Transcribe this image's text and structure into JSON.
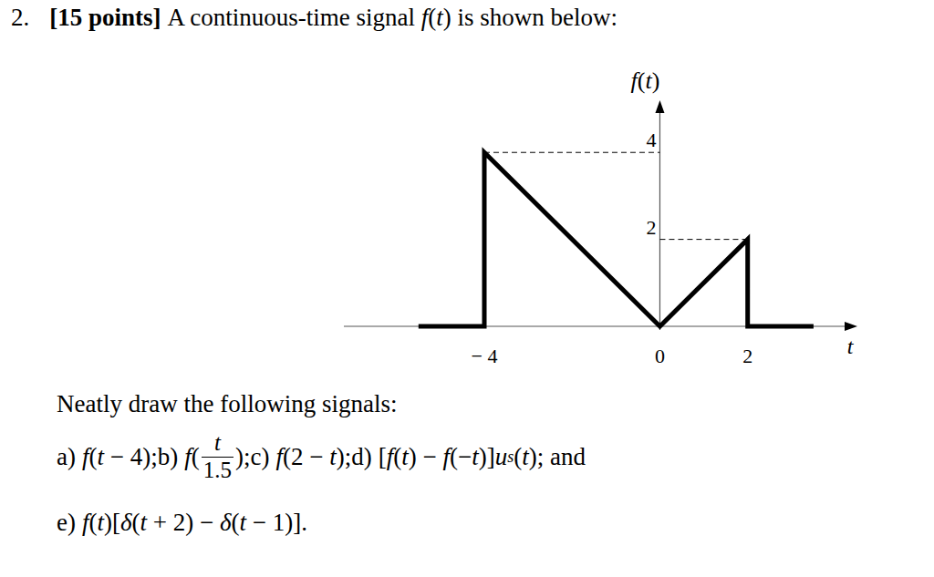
{
  "header": {
    "number": "2.",
    "points": "[15 points]",
    "statement": [
      {
        "text": "A continuous-time signal "
      },
      {
        "text": "f(t)",
        "math": true
      },
      {
        "text": " is shown below:"
      }
    ]
  },
  "chart_data": {
    "type": "line",
    "y_label": "f(t)",
    "x_label": "t",
    "color": "#000000",
    "x": [
      -5.5,
      -4,
      -4,
      0,
      2,
      2,
      3.5
    ],
    "values": [
      0,
      0,
      4,
      0,
      2,
      0,
      0
    ],
    "xlim": [
      -7.2,
      4.5
    ],
    "ylim": [
      0,
      5.2
    ],
    "xticks": [
      {
        "value": -4,
        "label": "− 4"
      },
      0,
      2
    ],
    "yticks": [
      2,
      4
    ],
    "guides": [
      {
        "x": [
          -4,
          0
        ],
        "y": 4,
        "line_style": "dashed"
      },
      {
        "x": [
          0,
          2
        ],
        "y": 2,
        "line_style": "dashed"
      }
    ],
    "grid": false
  },
  "questions": {
    "intro": "Neatly draw the following signals:",
    "lines": [
      [
        {
          "label": "a)",
          "expression": [
            "f(t − 4)"
          ],
          "separator": ";"
        },
        {
          "label": "b)",
          "expression": [
            {
              "fn": "f",
              "numerator": "t",
              "denominator": "1.5"
            }
          ],
          "separator": ";"
        },
        {
          "label": "c)",
          "expression": [
            "f(2 − t)"
          ],
          "separator": ";"
        },
        {
          "label": "d)",
          "expression": [
            "[f(t) − f(−t)]u",
            {
              "sub": "s"
            },
            "(t)"
          ],
          "separator": "; and"
        }
      ],
      [
        {
          "label": "e)",
          "expression": [
            "f(t)[δ(t + 2) − δ(t − 1)]"
          ],
          "separator": "."
        }
      ]
    ]
  }
}
